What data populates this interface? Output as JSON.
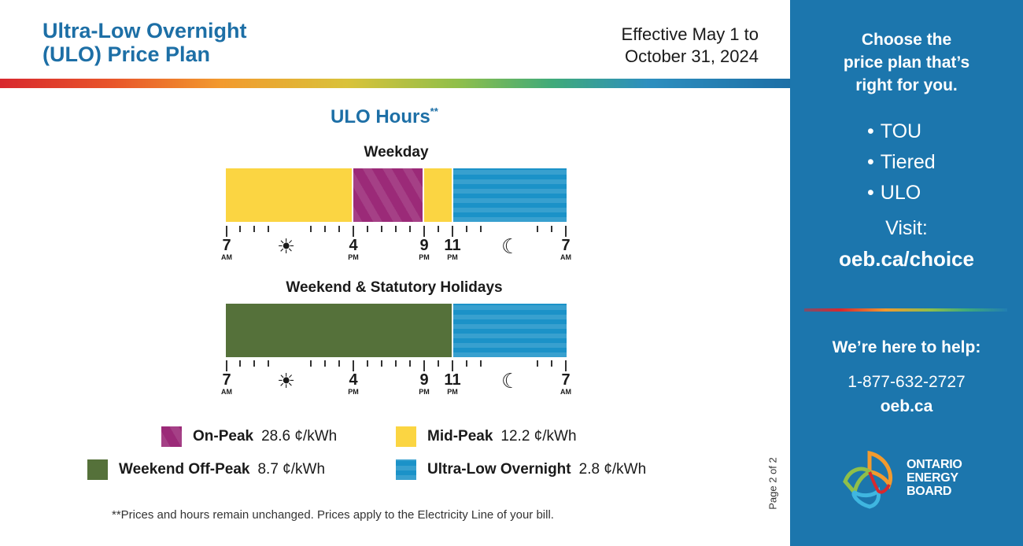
{
  "header": {
    "title_line1": "Ultra-Low Overnight",
    "title_line2": "(ULO) Price Plan",
    "effective_line1": "Effective May 1 to",
    "effective_line2": "October 31, 2024"
  },
  "ulo_hours": {
    "heading": "ULO Hours",
    "heading_mark": "**"
  },
  "weekday": {
    "label": "Weekday"
  },
  "weekend": {
    "label": "Weekend & Statutory Holidays"
  },
  "axis_labels": [
    {
      "num": "7",
      "ampm": "AM"
    },
    {
      "num": "4",
      "ampm": "PM"
    },
    {
      "num": "9",
      "ampm": "PM"
    },
    {
      "num": "11",
      "ampm": "PM"
    },
    {
      "num": "7",
      "ampm": "AM"
    }
  ],
  "axis_icons": {
    "day": "sun-icon",
    "night": "moon-icon"
  },
  "legend": {
    "on_peak": {
      "name": "On-Peak",
      "price": "28.6 ¢/kWh",
      "color": "#9b2a78"
    },
    "mid_peak": {
      "name": "Mid-Peak",
      "price": "12.2 ¢/kWh",
      "color": "#fbd542"
    },
    "weekend_off_peak": {
      "name": "Weekend Off-Peak",
      "price": "8.7 ¢/kWh",
      "color": "#55713a"
    },
    "ultra_low": {
      "name": "Ultra-Low Overnight",
      "price": "2.8 ¢/kWh",
      "color": "#1b92c8"
    }
  },
  "footnote": "**Prices and hours remain unchanged. Prices apply to the Electricity Line of your bill.",
  "page_number": "Page 2 of 2",
  "sidebar": {
    "title_line1": "Choose the",
    "title_line2": "price plan that’s",
    "title_line3": "right for you.",
    "plans": [
      "TOU",
      "Tiered",
      "ULO"
    ],
    "visit_label": "Visit:",
    "visit_url": "oeb.ca/choice",
    "help_label": "We’re here to help:",
    "phone": "1-877-632-2727",
    "website": "oeb.ca",
    "logo_line1": "ONTARIO",
    "logo_line2": "ENERGY",
    "logo_line3": "BOARD",
    "background_color": "#1c76ad"
  }
}
